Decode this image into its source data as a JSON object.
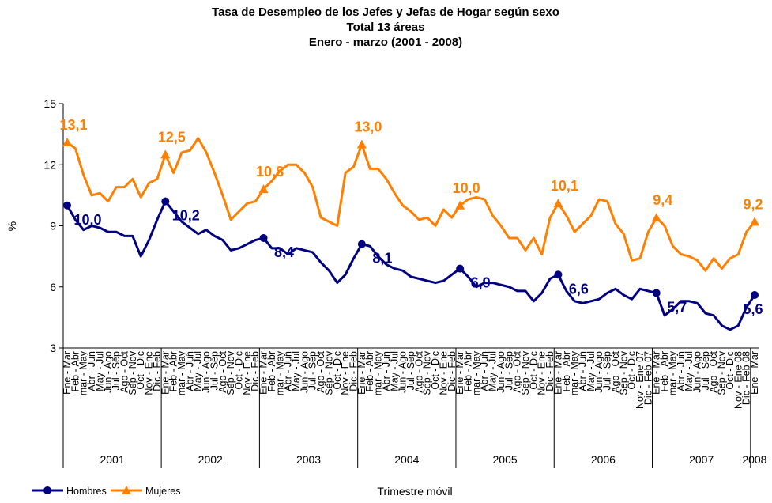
{
  "chart_data": {
    "type": "line",
    "title": "Tasa de Desempleo de los Jefes y Jefas  de Hogar según sexo",
    "subtitle": [
      "Total 13 áreas",
      "Enero - marzo (2001 - 2008)"
    ],
    "y_label": "%",
    "x_label": "Trimestre móvil",
    "categories": [
      "Ene - Mar",
      "Feb - Abr",
      "mar - May",
      "Abr - Jun",
      "May - Jul",
      "Jun - Ago",
      "Jul - Sep",
      "Ago - Oct",
      "Sep - Nov",
      "Oct - Dic",
      "Nov - Ene",
      "Dic - Feb",
      "Ene - Mar",
      "Feb - Abr",
      "mar - May",
      "Abr - Jun",
      "May - Jul",
      "Jun - Ago",
      "Jul - Sep",
      "Ago - Oct",
      "Sep - Nov",
      "Oct - Dic",
      "Nov - Ene",
      "Dic - Feb",
      "Ene - Mar",
      "Feb - Abr",
      "mar - May",
      "Abr - Jun",
      "May - Jul",
      "Jun - Ago",
      "Jul - Sep",
      "Ago - Oct",
      "Sep - Nov",
      "Oct - Dic",
      "Nov - Ene",
      "Dic - Feb",
      "Ene - Mar",
      "Feb - Abr",
      "mar - May",
      "Abr - Jun",
      "May - Jul",
      "Jun - Ago",
      "Jul - Sep",
      "Ago - Oct",
      "Sep - Nov",
      "Oct - Dic",
      "Nov - Ene",
      "Dic - Feb",
      "Ene - Mar",
      "Feb - Abr",
      "mar - May",
      "Abr - Jun",
      "May - Jul",
      "Jun - Ago",
      "Jul - Sep",
      "Ago - Oct",
      "Sep - Nov",
      "Oct - Dic",
      "Nov - Ene",
      "Dic - Feb",
      "Ene - Mar",
      "Feb - Abr",
      "mar - May",
      "Abr - Jun",
      "May - Jul",
      "Jun - Ago",
      "Jul - Sep",
      "Ago - Oct",
      "Sep - Nov",
      "Oct - Dic",
      "Nov - Ene 07",
      "Dic - Feb 07",
      "Ene - Mar",
      "Feb - Abr",
      "mar - May",
      "Abr - Jun",
      "May - Jul",
      "Jun - Ago",
      "Jul - Sep",
      "Ago - Oct",
      "Sep - Nov",
      "Oct - Dic",
      "Nov - Ene 08",
      "Dic - Feb 08",
      "Ene - Mar"
    ],
    "x_groups": [
      {
        "name": "2001",
        "count": 12
      },
      {
        "name": "2002",
        "count": 12
      },
      {
        "name": "2003",
        "count": 12
      },
      {
        "name": "2004",
        "count": 12
      },
      {
        "name": "2005",
        "count": 12
      },
      {
        "name": "2006",
        "count": 12
      },
      {
        "name": "2007",
        "count": 12
      },
      {
        "name": "2008",
        "count": 1
      }
    ],
    "ylim": [
      3,
      15
    ],
    "yticks": [
      3,
      6,
      9,
      12,
      15
    ],
    "grid": false,
    "legend": "bottom-left",
    "series": [
      {
        "name": "Hombres",
        "color": "#000080",
        "marker": "circle",
        "values": [
          10.0,
          9.3,
          8.8,
          9.0,
          8.9,
          8.7,
          8.7,
          8.5,
          8.5,
          7.5,
          8.3,
          9.3,
          10.2,
          9.7,
          9.2,
          8.9,
          8.6,
          8.8,
          8.5,
          8.3,
          7.8,
          7.9,
          8.1,
          8.3,
          8.4,
          7.9,
          7.9,
          7.6,
          7.9,
          7.8,
          7.7,
          7.2,
          6.8,
          6.2,
          6.6,
          7.4,
          8.1,
          8.0,
          7.5,
          7.1,
          6.9,
          6.8,
          6.5,
          6.4,
          6.3,
          6.2,
          6.3,
          6.6,
          6.9,
          6.5,
          6.0,
          6.2,
          6.2,
          6.1,
          6.0,
          5.8,
          5.8,
          5.3,
          5.7,
          6.4,
          6.6,
          5.8,
          5.3,
          5.2,
          5.3,
          5.4,
          5.7,
          5.9,
          5.6,
          5.4,
          5.9,
          5.8,
          5.7,
          4.6,
          4.9,
          5.3,
          5.3,
          5.2,
          4.7,
          4.6,
          4.1,
          3.9,
          4.1,
          5.0,
          5.6
        ],
        "value_labels": [
          "10,0",
          null,
          null,
          null,
          null,
          null,
          null,
          null,
          null,
          null,
          null,
          null,
          "10,2",
          null,
          null,
          null,
          null,
          null,
          null,
          null,
          null,
          null,
          null,
          null,
          "8,4",
          null,
          null,
          null,
          null,
          null,
          null,
          null,
          null,
          null,
          null,
          null,
          "8,1",
          null,
          null,
          null,
          null,
          null,
          null,
          null,
          null,
          null,
          null,
          null,
          "6,9",
          null,
          null,
          null,
          null,
          null,
          null,
          null,
          null,
          null,
          null,
          null,
          "6,6",
          null,
          null,
          null,
          null,
          null,
          null,
          null,
          null,
          null,
          null,
          null,
          "5,7",
          null,
          null,
          null,
          null,
          null,
          null,
          null,
          null,
          null,
          null,
          null,
          "5,6"
        ]
      },
      {
        "name": "Mujeres",
        "color": "#ff8000",
        "marker": "triangle",
        "values": [
          13.1,
          12.8,
          11.5,
          10.5,
          10.6,
          10.2,
          10.9,
          10.9,
          11.3,
          10.4,
          11.1,
          11.3,
          12.5,
          11.6,
          12.6,
          12.7,
          13.3,
          12.6,
          11.6,
          10.5,
          9.3,
          9.7,
          10.1,
          10.2,
          10.8,
          11.2,
          11.7,
          12.0,
          12.0,
          11.6,
          10.9,
          9.4,
          9.2,
          9.0,
          11.6,
          11.9,
          13.0,
          11.8,
          11.8,
          11.3,
          10.6,
          10.0,
          9.7,
          9.3,
          9.4,
          9.0,
          9.8,
          9.4,
          10.0,
          10.3,
          10.4,
          10.3,
          9.5,
          9.0,
          8.4,
          8.4,
          7.8,
          8.4,
          7.6,
          9.4,
          10.1,
          9.5,
          8.7,
          9.1,
          9.5,
          10.3,
          10.2,
          9.1,
          8.6,
          7.3,
          7.4,
          8.7,
          9.4,
          9.0,
          8.0,
          7.6,
          7.5,
          7.3,
          6.8,
          7.4,
          6.9,
          7.4,
          7.6,
          8.7,
          9.2
        ],
        "value_labels": [
          "13,1",
          null,
          null,
          null,
          null,
          null,
          null,
          null,
          null,
          null,
          null,
          null,
          "12,5",
          null,
          null,
          null,
          null,
          null,
          null,
          null,
          null,
          null,
          null,
          null,
          "10,8",
          null,
          null,
          null,
          null,
          null,
          null,
          null,
          null,
          null,
          null,
          null,
          "13,0",
          null,
          null,
          null,
          null,
          null,
          null,
          null,
          null,
          null,
          null,
          null,
          "10,0",
          null,
          null,
          null,
          null,
          null,
          null,
          null,
          null,
          null,
          null,
          null,
          "10,1",
          null,
          null,
          null,
          null,
          null,
          null,
          null,
          null,
          null,
          null,
          null,
          "9,4",
          null,
          null,
          null,
          null,
          null,
          null,
          null,
          null,
          null,
          null,
          null,
          "9,2"
        ]
      }
    ]
  }
}
